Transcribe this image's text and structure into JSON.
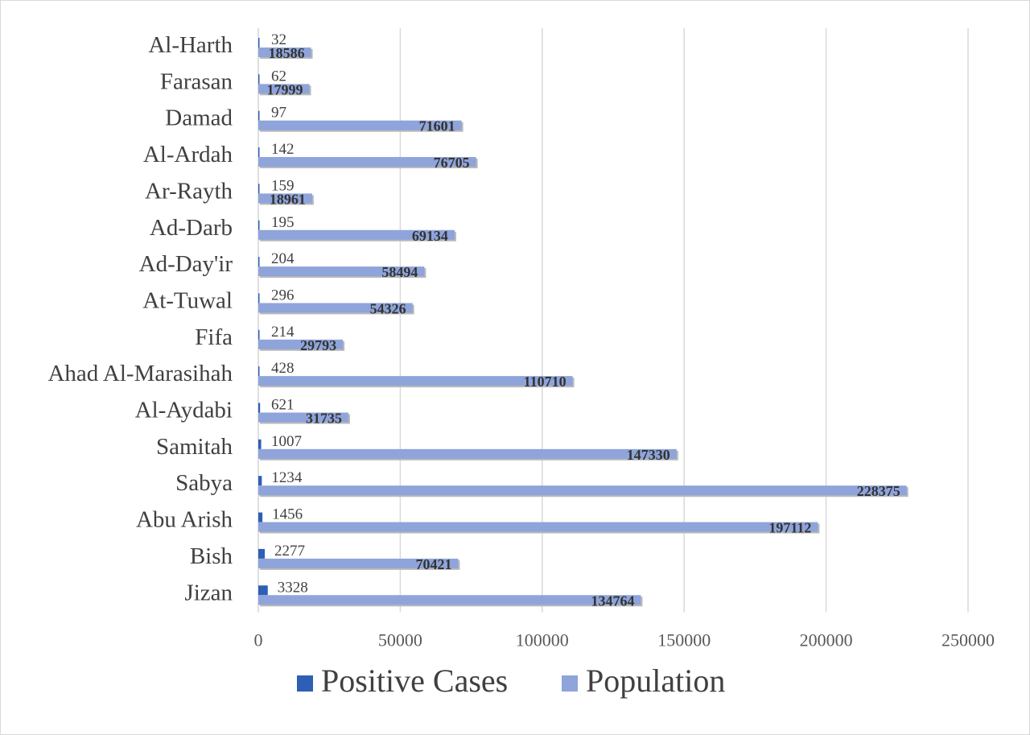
{
  "chart_data": {
    "type": "bar",
    "orientation": "horizontal",
    "categories": [
      "Jizan",
      "Bish",
      "Abu Arish",
      "Sabya",
      "Samitah",
      "Al-Aydabi",
      "Ahad Al-Marasihah",
      "Fifa",
      "At-Tuwal",
      "Ad-Day'ir",
      "Ad-Darb",
      "Ar-Rayth",
      "Al-Ardah",
      "Damad",
      "Farasan",
      "Al-Harth"
    ],
    "series": [
      {
        "name": "Positive Cases",
        "color": "#2f5fb4",
        "values": [
          3328,
          2277,
          1456,
          1234,
          1007,
          621,
          428,
          214,
          296,
          204,
          195,
          159,
          142,
          97,
          62,
          32
        ]
      },
      {
        "name": "Population",
        "color": "#8ea4da",
        "values": [
          134764,
          70421,
          197112,
          228375,
          147330,
          31735,
          110710,
          29793,
          54326,
          58494,
          69134,
          18961,
          76705,
          71601,
          17999,
          18586
        ]
      }
    ],
    "xlim": [
      0,
      250000
    ],
    "xticks": [
      0,
      50000,
      100000,
      150000,
      200000,
      250000
    ],
    "grid": true,
    "legend_position": "bottom",
    "data_labels": true
  }
}
